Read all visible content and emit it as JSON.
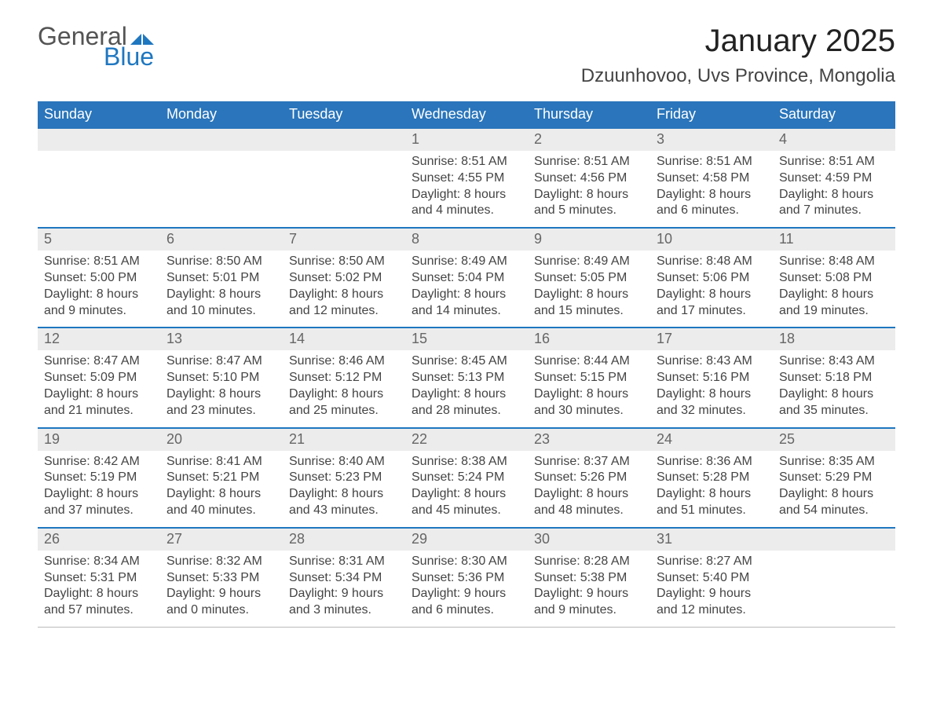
{
  "logo": {
    "text1": "General",
    "text2": "Blue",
    "flag_color": "#1f77c0"
  },
  "title": "January 2025",
  "location": "Dzuunhovoo, Uvs Province, Mongolia",
  "colors": {
    "header_blue": "#2a75bb",
    "accent_blue": "#1f77c0",
    "daynum_bg": "#ececec",
    "text_dark": "#333333",
    "background": "#ffffff"
  },
  "typography": {
    "title_fontsize": 40,
    "location_fontsize": 24,
    "weekday_fontsize": 18,
    "body_fontsize": 16
  },
  "layout": {
    "columns": 7,
    "rows": 5,
    "first_day_column_index": 3
  },
  "weekdays": [
    "Sunday",
    "Monday",
    "Tuesday",
    "Wednesday",
    "Thursday",
    "Friday",
    "Saturday"
  ],
  "days": [
    {
      "n": 1,
      "sunrise": "8:51 AM",
      "sunset": "4:55 PM",
      "daylight": "8 hours and 4 minutes."
    },
    {
      "n": 2,
      "sunrise": "8:51 AM",
      "sunset": "4:56 PM",
      "daylight": "8 hours and 5 minutes."
    },
    {
      "n": 3,
      "sunrise": "8:51 AM",
      "sunset": "4:58 PM",
      "daylight": "8 hours and 6 minutes."
    },
    {
      "n": 4,
      "sunrise": "8:51 AM",
      "sunset": "4:59 PM",
      "daylight": "8 hours and 7 minutes."
    },
    {
      "n": 5,
      "sunrise": "8:51 AM",
      "sunset": "5:00 PM",
      "daylight": "8 hours and 9 minutes."
    },
    {
      "n": 6,
      "sunrise": "8:50 AM",
      "sunset": "5:01 PM",
      "daylight": "8 hours and 10 minutes."
    },
    {
      "n": 7,
      "sunrise": "8:50 AM",
      "sunset": "5:02 PM",
      "daylight": "8 hours and 12 minutes."
    },
    {
      "n": 8,
      "sunrise": "8:49 AM",
      "sunset": "5:04 PM",
      "daylight": "8 hours and 14 minutes."
    },
    {
      "n": 9,
      "sunrise": "8:49 AM",
      "sunset": "5:05 PM",
      "daylight": "8 hours and 15 minutes."
    },
    {
      "n": 10,
      "sunrise": "8:48 AM",
      "sunset": "5:06 PM",
      "daylight": "8 hours and 17 minutes."
    },
    {
      "n": 11,
      "sunrise": "8:48 AM",
      "sunset": "5:08 PM",
      "daylight": "8 hours and 19 minutes."
    },
    {
      "n": 12,
      "sunrise": "8:47 AM",
      "sunset": "5:09 PM",
      "daylight": "8 hours and 21 minutes."
    },
    {
      "n": 13,
      "sunrise": "8:47 AM",
      "sunset": "5:10 PM",
      "daylight": "8 hours and 23 minutes."
    },
    {
      "n": 14,
      "sunrise": "8:46 AM",
      "sunset": "5:12 PM",
      "daylight": "8 hours and 25 minutes."
    },
    {
      "n": 15,
      "sunrise": "8:45 AM",
      "sunset": "5:13 PM",
      "daylight": "8 hours and 28 minutes."
    },
    {
      "n": 16,
      "sunrise": "8:44 AM",
      "sunset": "5:15 PM",
      "daylight": "8 hours and 30 minutes."
    },
    {
      "n": 17,
      "sunrise": "8:43 AM",
      "sunset": "5:16 PM",
      "daylight": "8 hours and 32 minutes."
    },
    {
      "n": 18,
      "sunrise": "8:43 AM",
      "sunset": "5:18 PM",
      "daylight": "8 hours and 35 minutes."
    },
    {
      "n": 19,
      "sunrise": "8:42 AM",
      "sunset": "5:19 PM",
      "daylight": "8 hours and 37 minutes."
    },
    {
      "n": 20,
      "sunrise": "8:41 AM",
      "sunset": "5:21 PM",
      "daylight": "8 hours and 40 minutes."
    },
    {
      "n": 21,
      "sunrise": "8:40 AM",
      "sunset": "5:23 PM",
      "daylight": "8 hours and 43 minutes."
    },
    {
      "n": 22,
      "sunrise": "8:38 AM",
      "sunset": "5:24 PM",
      "daylight": "8 hours and 45 minutes."
    },
    {
      "n": 23,
      "sunrise": "8:37 AM",
      "sunset": "5:26 PM",
      "daylight": "8 hours and 48 minutes."
    },
    {
      "n": 24,
      "sunrise": "8:36 AM",
      "sunset": "5:28 PM",
      "daylight": "8 hours and 51 minutes."
    },
    {
      "n": 25,
      "sunrise": "8:35 AM",
      "sunset": "5:29 PM",
      "daylight": "8 hours and 54 minutes."
    },
    {
      "n": 26,
      "sunrise": "8:34 AM",
      "sunset": "5:31 PM",
      "daylight": "8 hours and 57 minutes."
    },
    {
      "n": 27,
      "sunrise": "8:32 AM",
      "sunset": "5:33 PM",
      "daylight": "9 hours and 0 minutes."
    },
    {
      "n": 28,
      "sunrise": "8:31 AM",
      "sunset": "5:34 PM",
      "daylight": "9 hours and 3 minutes."
    },
    {
      "n": 29,
      "sunrise": "8:30 AM",
      "sunset": "5:36 PM",
      "daylight": "9 hours and 6 minutes."
    },
    {
      "n": 30,
      "sunrise": "8:28 AM",
      "sunset": "5:38 PM",
      "daylight": "9 hours and 9 minutes."
    },
    {
      "n": 31,
      "sunrise": "8:27 AM",
      "sunset": "5:40 PM",
      "daylight": "9 hours and 12 minutes."
    }
  ],
  "labels": {
    "sunrise": "Sunrise:",
    "sunset": "Sunset:",
    "daylight": "Daylight:"
  }
}
